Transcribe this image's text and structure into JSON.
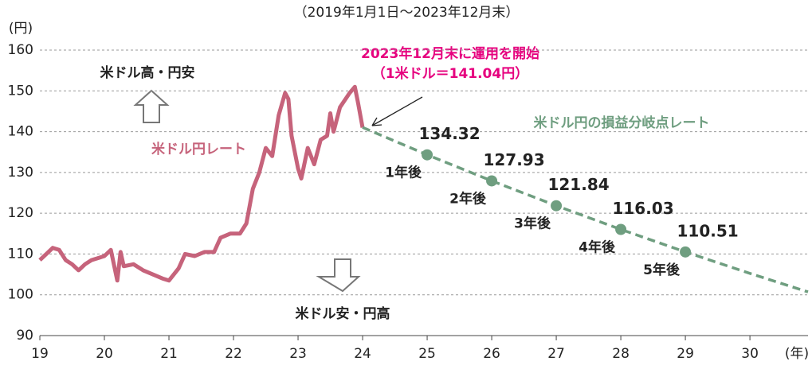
{
  "chart_data": {
    "type": "line",
    "subtitle": "（2019年1月1日～2023年12月末）",
    "y_unit": "(円)",
    "x_unit": "(年)",
    "xlim": [
      19,
      30.9
    ],
    "xticks": [
      19,
      20,
      21,
      22,
      23,
      24,
      25,
      26,
      27,
      28,
      29,
      30
    ],
    "ylim": [
      90,
      160
    ],
    "yticks": [
      90,
      100,
      110,
      120,
      130,
      140,
      150,
      160
    ],
    "grid": true,
    "annotations": {
      "start": "2023年12月末に運用を開始",
      "start_rate": "（1米ドル＝141.04円）",
      "up": "米ドル高・円安",
      "down": "米ドル安・円高"
    },
    "series": [
      {
        "name": "米ドル円レート",
        "color": "#c6637b",
        "x": [
          19.0,
          19.1,
          19.2,
          19.3,
          19.4,
          19.5,
          19.6,
          19.7,
          19.8,
          19.9,
          20.0,
          20.1,
          20.2,
          20.25,
          20.3,
          20.45,
          20.6,
          20.75,
          20.9,
          21.0,
          21.15,
          21.25,
          21.4,
          21.55,
          21.7,
          21.8,
          21.95,
          22.1,
          22.2,
          22.3,
          22.4,
          22.5,
          22.6,
          22.7,
          22.8,
          22.85,
          22.9,
          23.0,
          23.05,
          23.15,
          23.25,
          23.35,
          23.45,
          23.5,
          23.55,
          23.65,
          23.8,
          23.88,
          23.93,
          24.0
        ],
        "values": [
          108.5,
          110,
          111.5,
          111,
          108.5,
          107.5,
          106,
          107.5,
          108.5,
          109,
          109.5,
          111,
          103.5,
          110.5,
          107,
          107.5,
          106,
          105,
          104,
          103.5,
          106.5,
          110,
          109.5,
          110.5,
          110.5,
          114,
          115,
          115,
          117.5,
          126,
          130,
          136,
          134,
          144,
          149.5,
          148,
          139,
          131,
          128.5,
          136,
          132,
          138,
          139,
          144.5,
          140,
          146,
          149.5,
          151,
          147,
          141
        ]
      },
      {
        "name": "米ドル円の損益分岐点レート",
        "color": "#6f9e80",
        "x": [
          24,
          25,
          26,
          27,
          28,
          29,
          30,
          30.9
        ],
        "values": [
          141.04,
          134.32,
          127.93,
          121.84,
          116.03,
          110.51,
          105.25,
          100.7
        ],
        "point_labels": [
          null,
          "1年後",
          "2年後",
          "3年後",
          "4年後",
          "5年後",
          null,
          null
        ]
      }
    ]
  }
}
